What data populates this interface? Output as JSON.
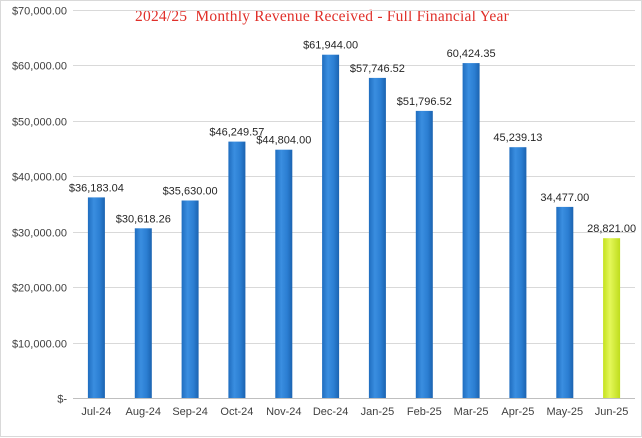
{
  "colors": {
    "bar": "#2e7fcf",
    "bar_highlight": "#d6f032",
    "title": "#e0302a",
    "gridline": "#d9d9d9",
    "axis": "#bfbfbf"
  },
  "chart_data": {
    "type": "bar",
    "title": "2024/25  Monthly Revenue Received - Full Financial Year",
    "xlabel": "",
    "ylabel": "",
    "ylim": [
      0,
      70000
    ],
    "y_ticks": [
      0,
      10000,
      20000,
      30000,
      40000,
      50000,
      60000,
      70000
    ],
    "y_tick_labels": [
      "$-",
      "$10,000.00",
      "$20,000.00",
      "$30,000.00",
      "$40,000.00",
      "$50,000.00",
      "$60,000.00",
      "$70,000.00"
    ],
    "grid": true,
    "legend": "none",
    "categories": [
      "Jul-24",
      "Aug-24",
      "Sep-24",
      "Oct-24",
      "Nov-24",
      "Dec-24",
      "Jan-25",
      "Feb-25",
      "Mar-25",
      "Apr-25",
      "May-25",
      "Jun-25"
    ],
    "values": [
      36183.04,
      30618.26,
      35630.0,
      46249.57,
      44804.0,
      61944.0,
      57746.52,
      51796.52,
      60424.35,
      45239.13,
      34477.0,
      28821.0
    ],
    "data_labels": [
      "$36,183.04",
      "$30,618.26",
      "$35,630.00",
      "$46,249.57",
      "$44,804.00",
      "$61,944.00",
      "$57,746.52",
      "$51,796.52",
      "60,424.35",
      "45,239.13",
      "34,477.00",
      "28,821.00"
    ],
    "highlighted_category": "Jun-25"
  }
}
